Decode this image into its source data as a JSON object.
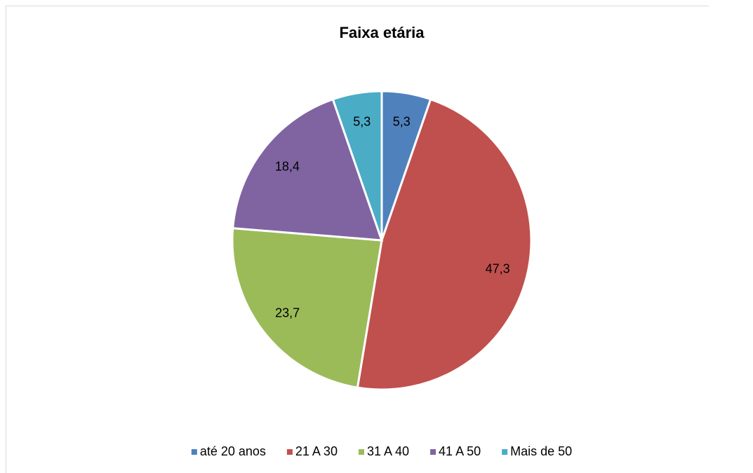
{
  "chart_data": {
    "type": "pie",
    "title": "Faixa etária",
    "categories": [
      "até 20 anos",
      "21 A 30",
      "31 A 40",
      "41 A 50",
      "Mais de 50"
    ],
    "values": [
      5.3,
      47.3,
      23.7,
      18.4,
      5.3
    ],
    "value_labels": [
      "5,3",
      "47,3",
      "23,7",
      "18,4",
      "5,3"
    ],
    "colors": [
      "#4f81bd",
      "#c0504d",
      "#9bbb59",
      "#8064a2",
      "#4bacc6"
    ],
    "legend": "bottom"
  }
}
